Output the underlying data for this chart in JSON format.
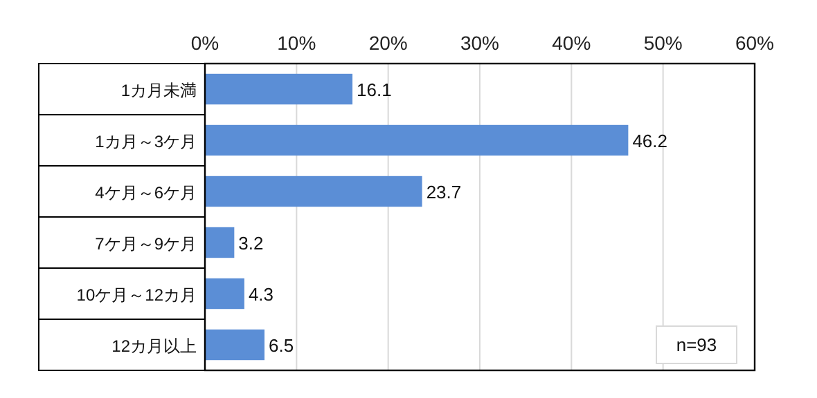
{
  "chart_data": {
    "type": "bar",
    "orientation": "horizontal",
    "categories": [
      "1カ月未満",
      "1カ月～3ケ月",
      "4ケ月～6ケ月",
      "7ケ月～9ケ月",
      "10ケ月～12カ月",
      "12カ月以上"
    ],
    "values": [
      16.1,
      46.2,
      23.7,
      3.2,
      4.3,
      6.5
    ],
    "color": "#5b8ed6",
    "xlim": [
      0,
      60
    ],
    "xticks": [
      {
        "value": 0,
        "label": "0%"
      },
      {
        "value": 10,
        "label": "10%"
      },
      {
        "value": 20,
        "label": "20%"
      },
      {
        "value": 30,
        "label": "30%"
      },
      {
        "value": 40,
        "label": "40%"
      },
      {
        "value": 50,
        "label": "50%"
      },
      {
        "value": 60,
        "label": "60%"
      }
    ],
    "grid": "x",
    "data_labels": true,
    "annotations": [
      "n=93"
    ]
  }
}
